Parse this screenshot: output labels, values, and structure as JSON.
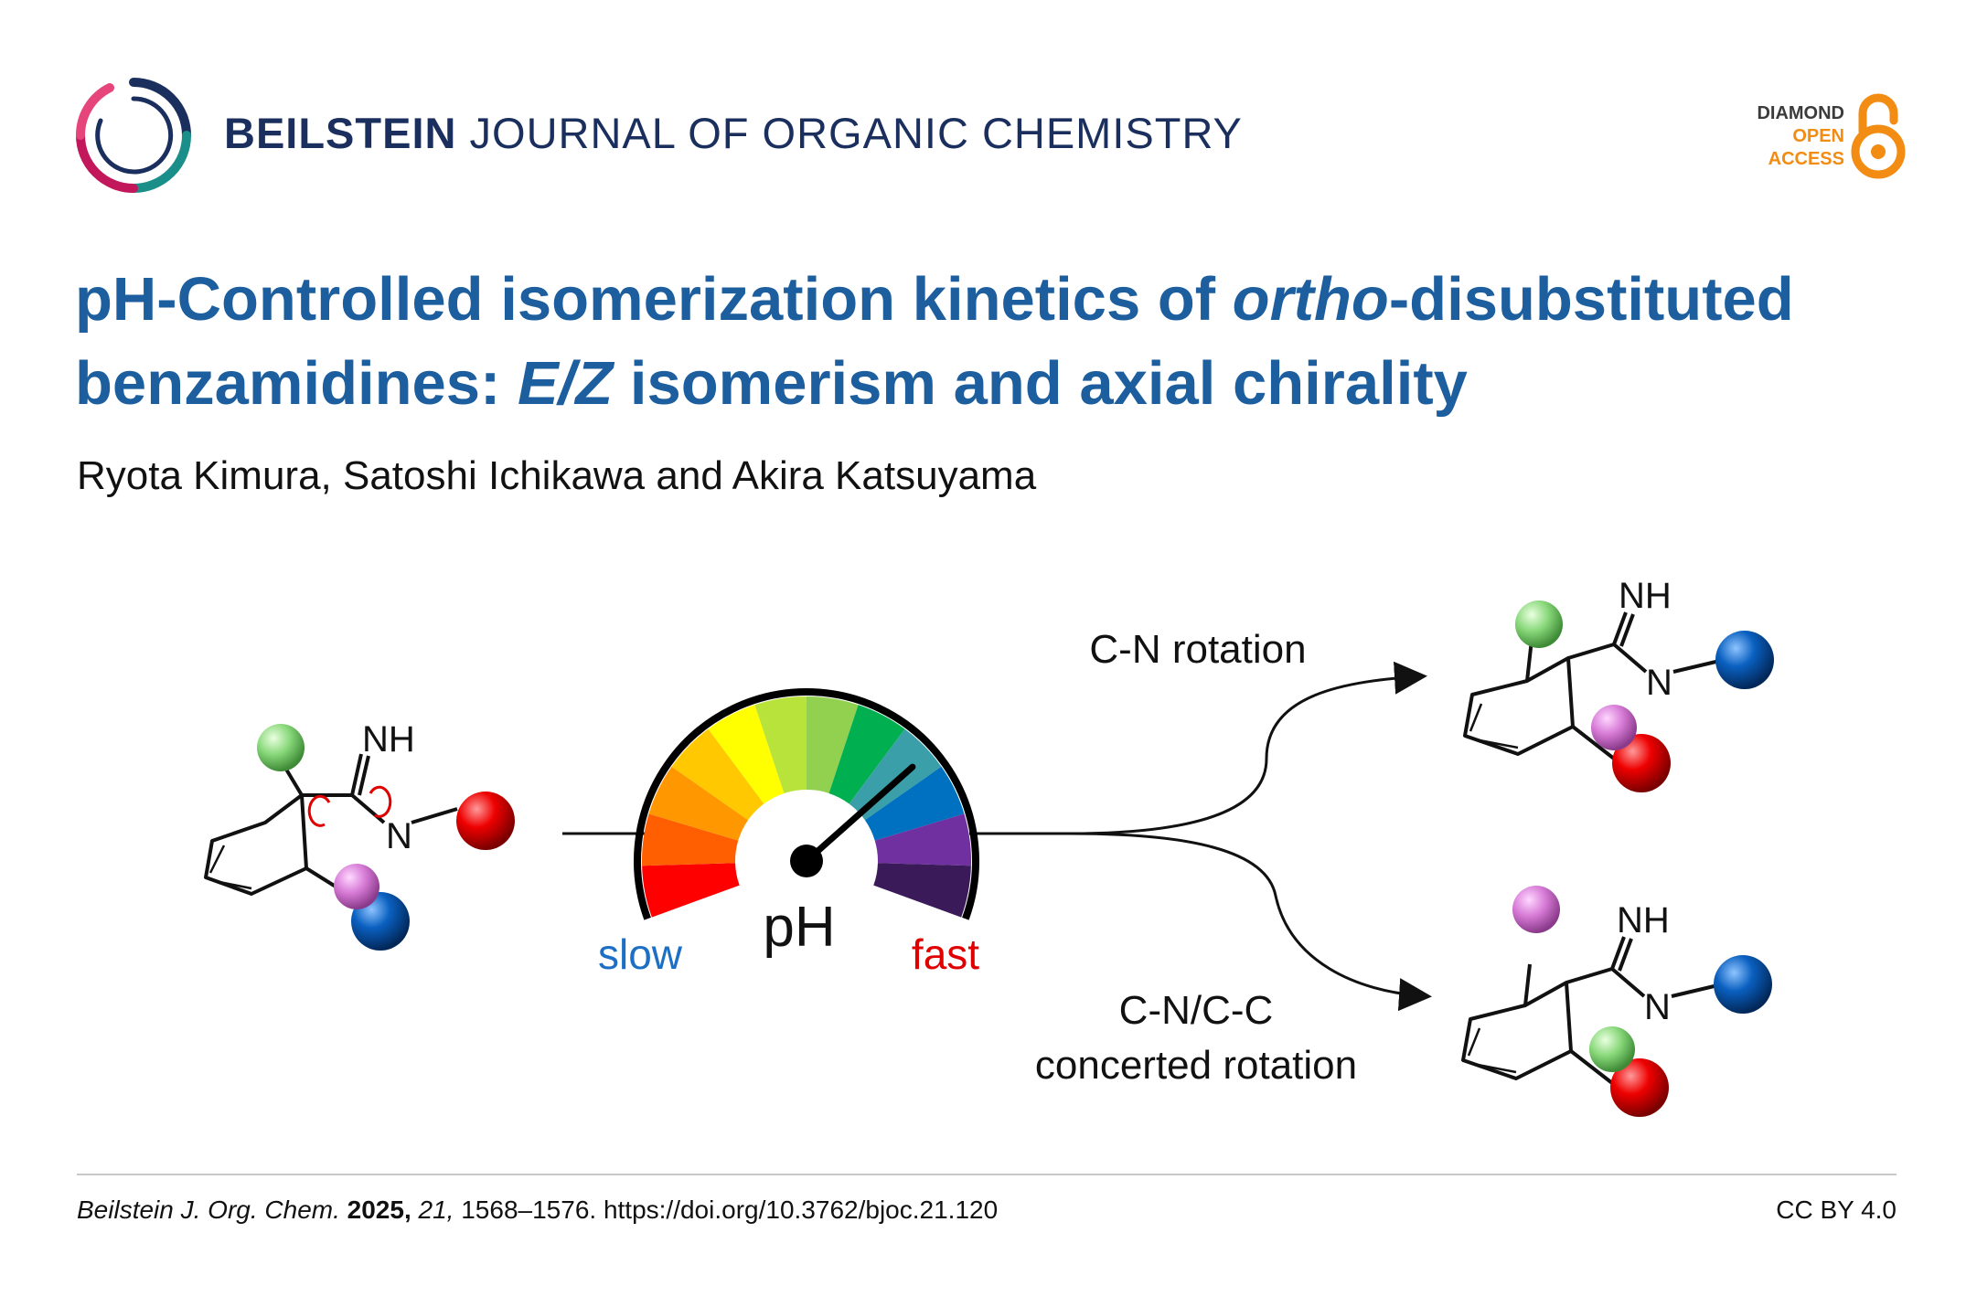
{
  "header": {
    "journal_name_bold": "BEILSTEIN",
    "journal_name_rest": " JOURNAL OF ORGANIC CHEMISTRY",
    "badge": {
      "line1": "DIAMOND",
      "line2": "OPEN",
      "line3": "ACCESS"
    },
    "colors": {
      "journal": "#1b2f5e",
      "badge_orange": "#f28c13"
    }
  },
  "article": {
    "title_part1": "pH-Controlled isomerization kinetics of ",
    "title_italic1": "ortho",
    "title_part2": "-disubstituted benzamidines: ",
    "title_italic2": "E/Z",
    "title_part3": " isomerism and axial chirality",
    "authors": "Ryota Kimura, Satoshi Ichikawa and Akira Katsuyama"
  },
  "graphic": {
    "atom_nh": "NH",
    "atom_n": "N",
    "gauge_label": "pH",
    "gauge_slow": "slow",
    "gauge_fast": "fast",
    "upper_path_label": "C-N rotation",
    "lower_path_label_1": "C-N/C-C",
    "lower_path_label_2": "concerted rotation",
    "gauge_colors": [
      "#ff0000",
      "#ff5f00",
      "#ff9800",
      "#ffc800",
      "#ffff00",
      "#b8e33a",
      "#92d050",
      "#00b050",
      "#3a9fa8",
      "#0070c0",
      "#7030a0",
      "#3b1a5a"
    ],
    "gauge_needle_fraction": 0.72
  },
  "footer": {
    "journal_abbrev": "Beilstein J. Org. Chem.",
    "year": "2025,",
    "volume": "21,",
    "pages_doi": "1568–1576. https://doi.org/10.3762/bjoc.21.120",
    "license": "CC BY 4.0"
  }
}
